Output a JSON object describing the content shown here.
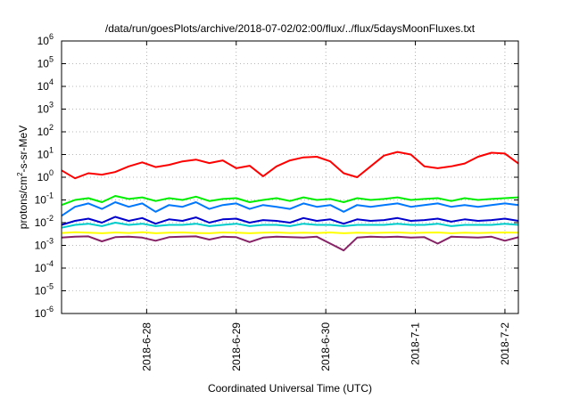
{
  "chart_data": {
    "type": "line",
    "title": "/data/run/goesPlots/archive/2018-07-02/02:00/flux/../flux/5daysMoonFluxes.txt",
    "xlabel": "Coordinated Universal Time (UTC)",
    "ylabel_main": "protons/cm",
    "ylabel_sup": "2",
    "ylabel_rest": "-s-sr-MeV",
    "yscale": "log",
    "ylim": [
      1e-06,
      1000000.0
    ],
    "y_ticks": [
      {
        "base": "10",
        "exp": "-6",
        "value": -6
      },
      {
        "base": "10",
        "exp": "-5",
        "value": -5
      },
      {
        "base": "10",
        "exp": "-4",
        "value": -4
      },
      {
        "base": "10",
        "exp": "-3",
        "value": -3
      },
      {
        "base": "10",
        "exp": "-2",
        "value": -2
      },
      {
        "base": "10",
        "exp": "-1",
        "value": -1
      },
      {
        "base": "10",
        "exp": "0",
        "value": 0
      },
      {
        "base": "10",
        "exp": "1",
        "value": 1
      },
      {
        "base": "10",
        "exp": "2",
        "value": 2
      },
      {
        "base": "10",
        "exp": "3",
        "value": 3
      },
      {
        "base": "10",
        "exp": "4",
        "value": 4
      },
      {
        "base": "10",
        "exp": "5",
        "value": 5
      },
      {
        "base": "10",
        "exp": "6",
        "value": 6
      }
    ],
    "x_range_days": [
      27.05,
      32.15
    ],
    "x_ticks": [
      {
        "label": "2018-6-28",
        "day": 28
      },
      {
        "label": "2018-6-29",
        "day": 29
      },
      {
        "label": "2018-6-30",
        "day": 30
      },
      {
        "label": "2018-7-1",
        "day": 31
      },
      {
        "label": "2018-7-2",
        "day": 32
      }
    ],
    "grid": true,
    "series": [
      {
        "color": "#ff0000",
        "x": [
          27.05,
          27.2,
          27.35,
          27.5,
          27.65,
          27.8,
          27.95,
          28.1,
          28.25,
          28.4,
          28.55,
          28.7,
          28.85,
          29.0,
          29.15,
          29.3,
          29.45,
          29.6,
          29.75,
          29.9,
          30.05,
          30.2,
          30.35,
          30.5,
          30.65,
          30.8,
          30.95,
          31.1,
          31.25,
          31.4,
          31.55,
          31.7,
          31.85,
          32.0,
          32.15
        ],
        "y": [
          2.0,
          0.9,
          1.5,
          1.3,
          1.7,
          3.0,
          4.5,
          2.8,
          3.5,
          5.0,
          6.0,
          4.2,
          5.5,
          2.5,
          3.2,
          1.1,
          3.0,
          5.5,
          7.5,
          8.0,
          5.0,
          1.5,
          1.0,
          3.0,
          9.0,
          13.0,
          10.0,
          3.0,
          2.5,
          3.0,
          4.0,
          8.0,
          12.0,
          11.0,
          4.0
        ]
      },
      {
        "color": "#00ee00",
        "x": [
          27.05,
          27.2,
          27.35,
          27.5,
          27.65,
          27.8,
          27.95,
          28.1,
          28.25,
          28.4,
          28.55,
          28.7,
          28.85,
          29.0,
          29.15,
          29.3,
          29.45,
          29.6,
          29.75,
          29.9,
          30.05,
          30.2,
          30.35,
          30.5,
          30.65,
          30.8,
          30.95,
          31.1,
          31.25,
          31.4,
          31.55,
          31.7,
          31.85,
          32.0,
          32.15
        ],
        "y": [
          0.06,
          0.1,
          0.12,
          0.08,
          0.15,
          0.11,
          0.13,
          0.09,
          0.12,
          0.1,
          0.14,
          0.09,
          0.11,
          0.12,
          0.08,
          0.1,
          0.12,
          0.09,
          0.13,
          0.1,
          0.11,
          0.08,
          0.12,
          0.1,
          0.11,
          0.13,
          0.1,
          0.11,
          0.12,
          0.09,
          0.12,
          0.1,
          0.11,
          0.12,
          0.13
        ]
      },
      {
        "color": "#0077ff",
        "x": [
          27.05,
          27.2,
          27.35,
          27.5,
          27.65,
          27.8,
          27.95,
          28.1,
          28.25,
          28.4,
          28.55,
          28.7,
          28.85,
          29.0,
          29.15,
          29.3,
          29.45,
          29.6,
          29.75,
          29.9,
          30.05,
          30.2,
          30.35,
          30.5,
          30.65,
          30.8,
          30.95,
          31.1,
          31.25,
          31.4,
          31.55,
          31.7,
          31.85,
          32.0,
          32.15
        ],
        "y": [
          0.02,
          0.05,
          0.07,
          0.04,
          0.08,
          0.05,
          0.07,
          0.03,
          0.06,
          0.05,
          0.08,
          0.04,
          0.06,
          0.07,
          0.04,
          0.06,
          0.05,
          0.04,
          0.07,
          0.05,
          0.06,
          0.03,
          0.06,
          0.05,
          0.06,
          0.07,
          0.05,
          0.06,
          0.07,
          0.05,
          0.06,
          0.05,
          0.06,
          0.07,
          0.06
        ]
      },
      {
        "color": "#0000cc",
        "x": [
          27.05,
          27.2,
          27.35,
          27.5,
          27.65,
          27.8,
          27.95,
          28.1,
          28.25,
          28.4,
          28.55,
          28.7,
          28.85,
          29.0,
          29.15,
          29.3,
          29.45,
          29.6,
          29.75,
          29.9,
          30.05,
          30.2,
          30.35,
          30.5,
          30.65,
          30.8,
          30.95,
          31.1,
          31.25,
          31.4,
          31.55,
          31.7,
          31.85,
          32.0,
          32.15
        ],
        "y": [
          0.008,
          0.012,
          0.015,
          0.01,
          0.018,
          0.012,
          0.016,
          0.009,
          0.014,
          0.012,
          0.017,
          0.01,
          0.014,
          0.015,
          0.01,
          0.013,
          0.012,
          0.01,
          0.016,
          0.012,
          0.014,
          0.009,
          0.014,
          0.012,
          0.013,
          0.016,
          0.012,
          0.013,
          0.015,
          0.011,
          0.014,
          0.012,
          0.013,
          0.015,
          0.012
        ]
      },
      {
        "color": "#00cccc",
        "x": [
          27.05,
          27.2,
          27.35,
          27.5,
          27.65,
          27.8,
          27.95,
          28.1,
          28.25,
          28.4,
          28.55,
          28.7,
          28.85,
          29.0,
          29.15,
          29.3,
          29.45,
          29.6,
          29.75,
          29.9,
          30.05,
          30.2,
          30.35,
          30.5,
          30.65,
          30.8,
          30.95,
          31.1,
          31.25,
          31.4,
          31.55,
          31.7,
          31.85,
          32.0,
          32.15
        ],
        "y": [
          0.006,
          0.008,
          0.009,
          0.007,
          0.01,
          0.008,
          0.009,
          0.007,
          0.008,
          0.008,
          0.009,
          0.007,
          0.008,
          0.009,
          0.007,
          0.008,
          0.008,
          0.007,
          0.009,
          0.008,
          0.008,
          0.007,
          0.008,
          0.008,
          0.008,
          0.009,
          0.008,
          0.008,
          0.009,
          0.007,
          0.008,
          0.008,
          0.008,
          0.009,
          0.008
        ]
      },
      {
        "color": "#ffff00",
        "x": [
          27.05,
          27.2,
          27.35,
          27.5,
          27.65,
          27.8,
          27.95,
          28.1,
          28.25,
          28.4,
          28.55,
          28.7,
          28.85,
          29.0,
          29.15,
          29.3,
          29.45,
          29.6,
          29.75,
          29.9,
          30.05,
          30.2,
          30.35,
          30.5,
          30.65,
          30.8,
          30.95,
          31.1,
          31.25,
          31.4,
          31.55,
          31.7,
          31.85,
          32.0,
          32.15
        ],
        "y": [
          0.0035,
          0.0038,
          0.0036,
          0.0034,
          0.0037,
          0.0035,
          0.0038,
          0.0034,
          0.0036,
          0.0037,
          0.0035,
          0.0034,
          0.0037,
          0.0036,
          0.0034,
          0.0036,
          0.0037,
          0.0035,
          0.0036,
          0.0035,
          0.0037,
          0.0034,
          0.0036,
          0.0035,
          0.0036,
          0.0037,
          0.0035,
          0.0036,
          0.0037,
          0.0034,
          0.0036,
          0.0035,
          0.0036,
          0.0037,
          0.0036
        ]
      },
      {
        "color": "#882266",
        "x": [
          27.05,
          27.2,
          27.35,
          27.5,
          27.65,
          27.8,
          27.95,
          28.1,
          28.25,
          28.4,
          28.55,
          28.7,
          28.85,
          29.0,
          29.15,
          29.3,
          29.45,
          29.6,
          29.75,
          29.9,
          30.05,
          30.2,
          30.35,
          30.5,
          30.65,
          30.8,
          30.95,
          31.1,
          31.25,
          31.4,
          31.55,
          31.7,
          31.85,
          32.0,
          32.15
        ],
        "y": [
          0.0022,
          0.0024,
          0.0025,
          0.0015,
          0.0023,
          0.0024,
          0.0022,
          0.0016,
          0.0023,
          0.0024,
          0.0025,
          0.0018,
          0.0024,
          0.0023,
          0.0014,
          0.0022,
          0.0024,
          0.0023,
          0.0022,
          0.0024,
          0.0012,
          0.0006,
          0.0022,
          0.0024,
          0.0023,
          0.0024,
          0.0022,
          0.0023,
          0.0012,
          0.0024,
          0.0023,
          0.0022,
          0.0024,
          0.0016,
          0.0023
        ]
      }
    ]
  }
}
